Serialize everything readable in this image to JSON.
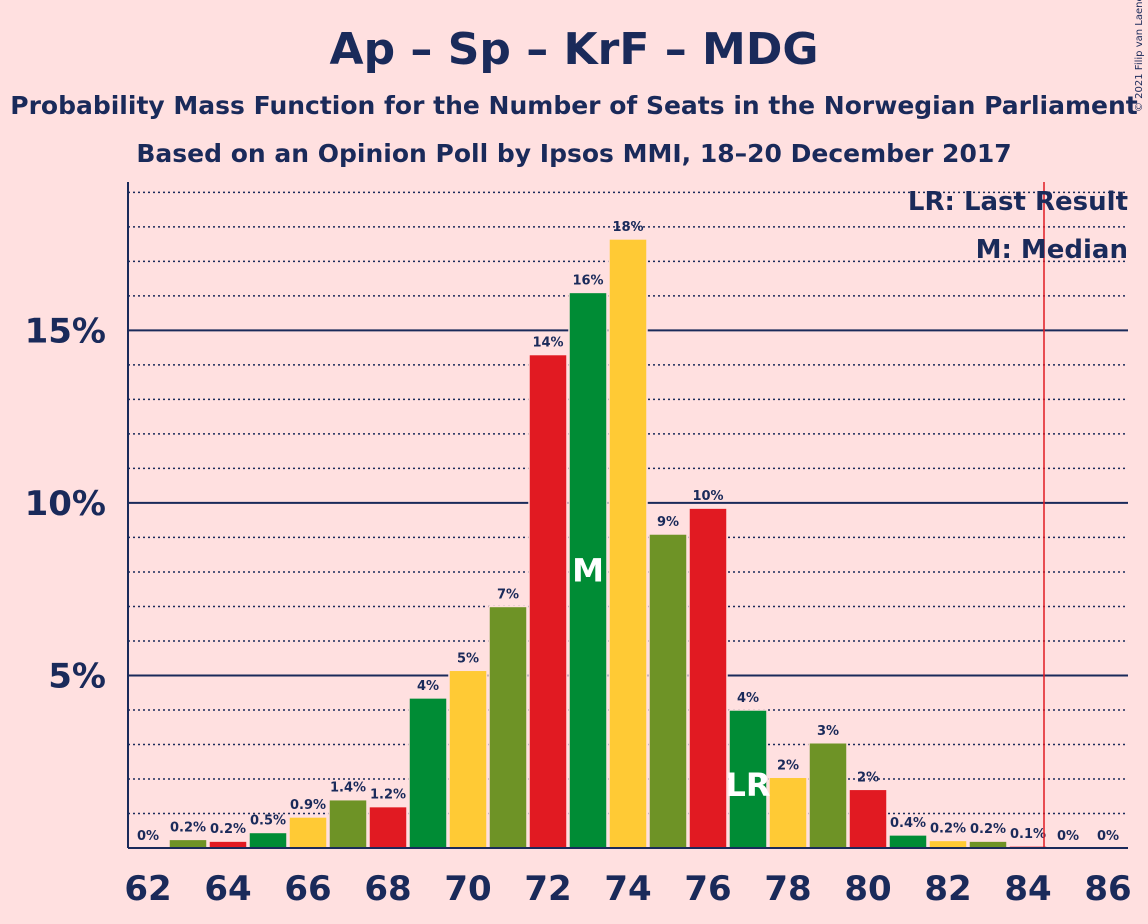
{
  "copyright": "© 2021 Filip van Laenen",
  "chart_data": {
    "type": "bar",
    "title": "Ap – Sp – KrF – MDG",
    "subtitle": "Probability Mass Function for the Number of Seats in the Norwegian Parliament",
    "subtitle2": "Based on an Opinion Poll by Ipsos MMI, 18–20 December 2017",
    "xlabel": "",
    "ylabel": "",
    "ylim": [
      0,
      19.3
    ],
    "yticks": [
      {
        "value": 5,
        "label": "5%"
      },
      {
        "value": 10,
        "label": "10%"
      },
      {
        "value": 15,
        "label": "15%"
      }
    ],
    "minor_grid_step": 1,
    "xticks": [
      "62",
      "64",
      "66",
      "68",
      "70",
      "72",
      "74",
      "76",
      "78",
      "80",
      "82",
      "84",
      "86"
    ],
    "x": [
      62,
      63,
      64,
      65,
      66,
      67,
      68,
      69,
      70,
      71,
      72,
      73,
      74,
      75,
      76,
      77,
      78,
      79,
      80,
      81,
      82,
      83,
      84,
      85,
      86
    ],
    "values": [
      0,
      0.25,
      0.2,
      0.45,
      0.9,
      1.4,
      1.2,
      4.35,
      5.15,
      7.0,
      14.3,
      16.1,
      17.65,
      9.1,
      9.85,
      4.0,
      2.05,
      3.05,
      1.7,
      0.38,
      0.22,
      0.2,
      0.06,
      0,
      0
    ],
    "labels": [
      "0%",
      "0.2%",
      "0.2%",
      "0.5%",
      "0.9%",
      "1.4%",
      "1.2%",
      "4%",
      "5%",
      "7%",
      "14%",
      "16%",
      "18%",
      "9%",
      "10%",
      "4%",
      "2%",
      "3%",
      "2%",
      "0.4%",
      "0.2%",
      "0.2%",
      "0.1%",
      "0%",
      "0%"
    ],
    "colors": [
      "#E11A22",
      "#6E9326",
      "#E11A22",
      "#008C35",
      "#FFCA35",
      "#6E9326",
      "#E11A22",
      "#008C35",
      "#FFCA35",
      "#6E9326",
      "#E11A22",
      "#008C35",
      "#FFCA35",
      "#6E9326",
      "#E11A22",
      "#008C35",
      "#FFCA35",
      "#6E9326",
      "#E11A22",
      "#008C35",
      "#FFCA35",
      "#6E9326",
      "#E11A22",
      "#008C35",
      "#FFCA35"
    ],
    "median_seat": 73,
    "median_mark": "M",
    "last_result_seat": 77,
    "last_result_mark": "LR",
    "majority_line_x": 85,
    "legend": [
      "LR: Last Result",
      "M: Median"
    ],
    "legend_position": "top-right",
    "colors_theme": {
      "axis": "#1A2A5A",
      "majority_line": "#E11A22",
      "background": "#FFE0E0"
    }
  }
}
